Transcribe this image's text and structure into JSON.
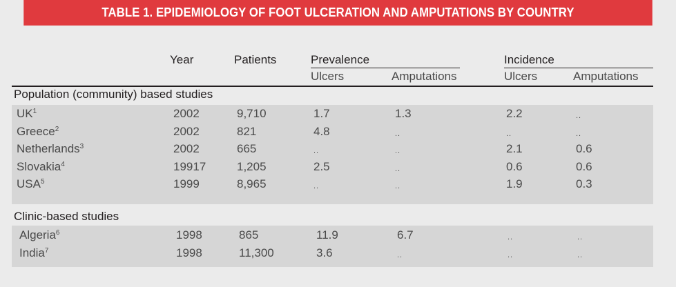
{
  "title": "TABLE 1. EPIDEMIOLOGY OF FOOT ULCERATION AND AMPUTATIONS BY COUNTRY",
  "headers": {
    "year": "Year",
    "patients": "Patients",
    "prevalence": "Prevalence",
    "incidence": "Incidence",
    "ulcers": "Ulcers",
    "amputations": "Amputations"
  },
  "sections": [
    {
      "label": "Population (community) based studies",
      "rows": [
        {
          "country": "UK",
          "ref": "1",
          "year": "2002",
          "patients": "9,710",
          "prev_ulcers": "1.7",
          "prev_amputations": "1.3",
          "inc_ulcers": "2.2",
          "inc_amputations": ".."
        },
        {
          "country": "Greece",
          "ref": "2",
          "year": "2002",
          "patients": "821",
          "prev_ulcers": "4.8",
          "prev_amputations": "..",
          "inc_ulcers": "..",
          "inc_amputations": ".."
        },
        {
          "country": "Netherlands",
          "ref": "3",
          "year": "2002",
          "patients": "665",
          "prev_ulcers": "..",
          "prev_amputations": "..",
          "inc_ulcers": "2.1",
          "inc_amputations": "0.6"
        },
        {
          "country": "Slovakia",
          "ref": "4",
          "year": "19917",
          "patients": "1,205",
          "prev_ulcers": "2.5",
          "prev_amputations": "..",
          "inc_ulcers": "0.6",
          "inc_amputations": "0.6"
        },
        {
          "country": "USA",
          "ref": "5",
          "year": "1999",
          "patients": "8,965",
          "prev_ulcers": "..",
          "prev_amputations": "..",
          "inc_ulcers": "1.9",
          "inc_amputations": "0.3"
        }
      ]
    },
    {
      "label": "Clinic-based studies",
      "rows": [
        {
          "country": "Algeria",
          "ref": "6",
          "year": "1998",
          "patients": "865",
          "prev_ulcers": "11.9",
          "prev_amputations": "6.7",
          "inc_ulcers": "..",
          "inc_amputations": ".."
        },
        {
          "country": "India",
          "ref": "7",
          "year": "1998",
          "patients": "11,300",
          "prev_ulcers": "3.6",
          "prev_amputations": "..",
          "inc_ulcers": "..",
          "inc_amputations": ".."
        }
      ]
    }
  ]
}
